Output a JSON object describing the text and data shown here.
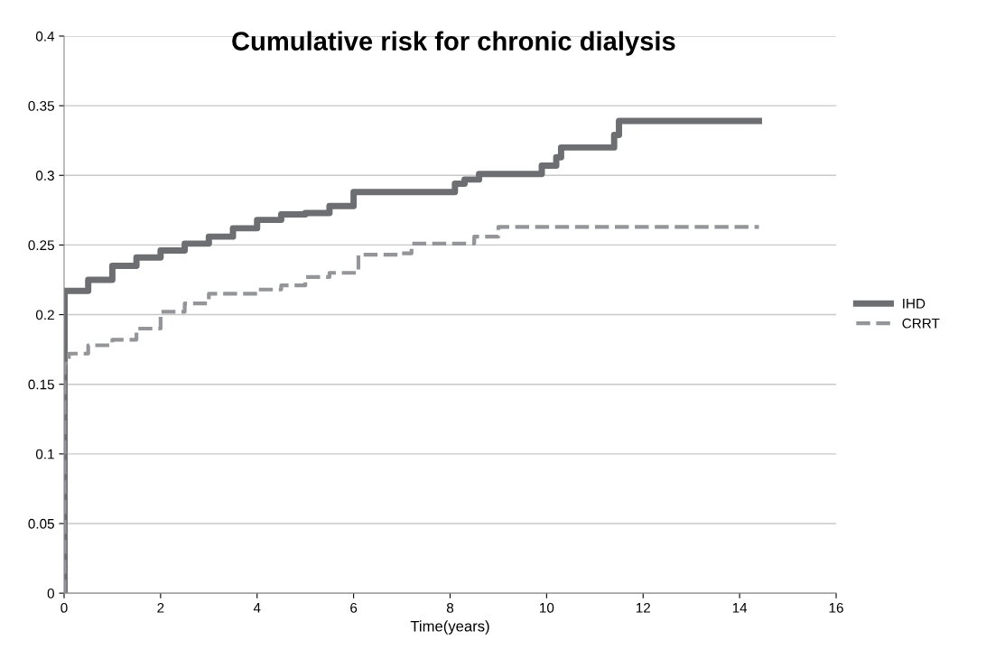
{
  "chart_data": {
    "type": "step",
    "title": "Cumulative risk for chronic dialysis",
    "xlabel": "Time(years)",
    "xlim": [
      0,
      16
    ],
    "xticks": [
      0,
      2,
      4,
      6,
      8,
      10,
      12,
      14,
      16
    ],
    "ylim": [
      0,
      0.4
    ],
    "yticks": [
      0,
      0.05,
      0.1,
      0.15,
      0.2,
      0.25,
      0.3,
      0.35,
      0.4
    ],
    "grid": "y",
    "legend": "right",
    "marker": "none",
    "series": [
      {
        "name": "IHD",
        "color": "#6d6e71",
        "line_style": "solid",
        "x": [
          0,
          0.01,
          0.5,
          1,
          1.5,
          2,
          2.5,
          3,
          3.5,
          4,
          4.5,
          5,
          5.5,
          6,
          7.9,
          8.1,
          8.3,
          8.6,
          9.8,
          9.9,
          10.2,
          10.3,
          11.3,
          11.4,
          11.5,
          14.4
        ],
        "values": [
          0,
          0.217,
          0.225,
          0.235,
          0.241,
          0.246,
          0.251,
          0.256,
          0.262,
          0.268,
          0.272,
          0.273,
          0.278,
          0.288,
          0.288,
          0.294,
          0.297,
          0.301,
          0.301,
          0.307,
          0.313,
          0.32,
          0.32,
          0.329,
          0.339,
          0.339
        ]
      },
      {
        "name": "CRRT",
        "color": "#939598",
        "line_style": "dashed",
        "x": [
          0,
          0.01,
          0.1,
          0.5,
          1,
          1.5,
          2,
          2.5,
          3,
          4,
          4.5,
          5,
          5.5,
          5.9,
          6.1,
          7,
          7.2,
          8,
          8.5,
          9,
          14.4
        ],
        "values": [
          0,
          0.165,
          0.172,
          0.178,
          0.182,
          0.19,
          0.202,
          0.208,
          0.215,
          0.218,
          0.221,
          0.227,
          0.23,
          0.23,
          0.243,
          0.244,
          0.251,
          0.251,
          0.256,
          0.263,
          0.263
        ]
      }
    ]
  }
}
